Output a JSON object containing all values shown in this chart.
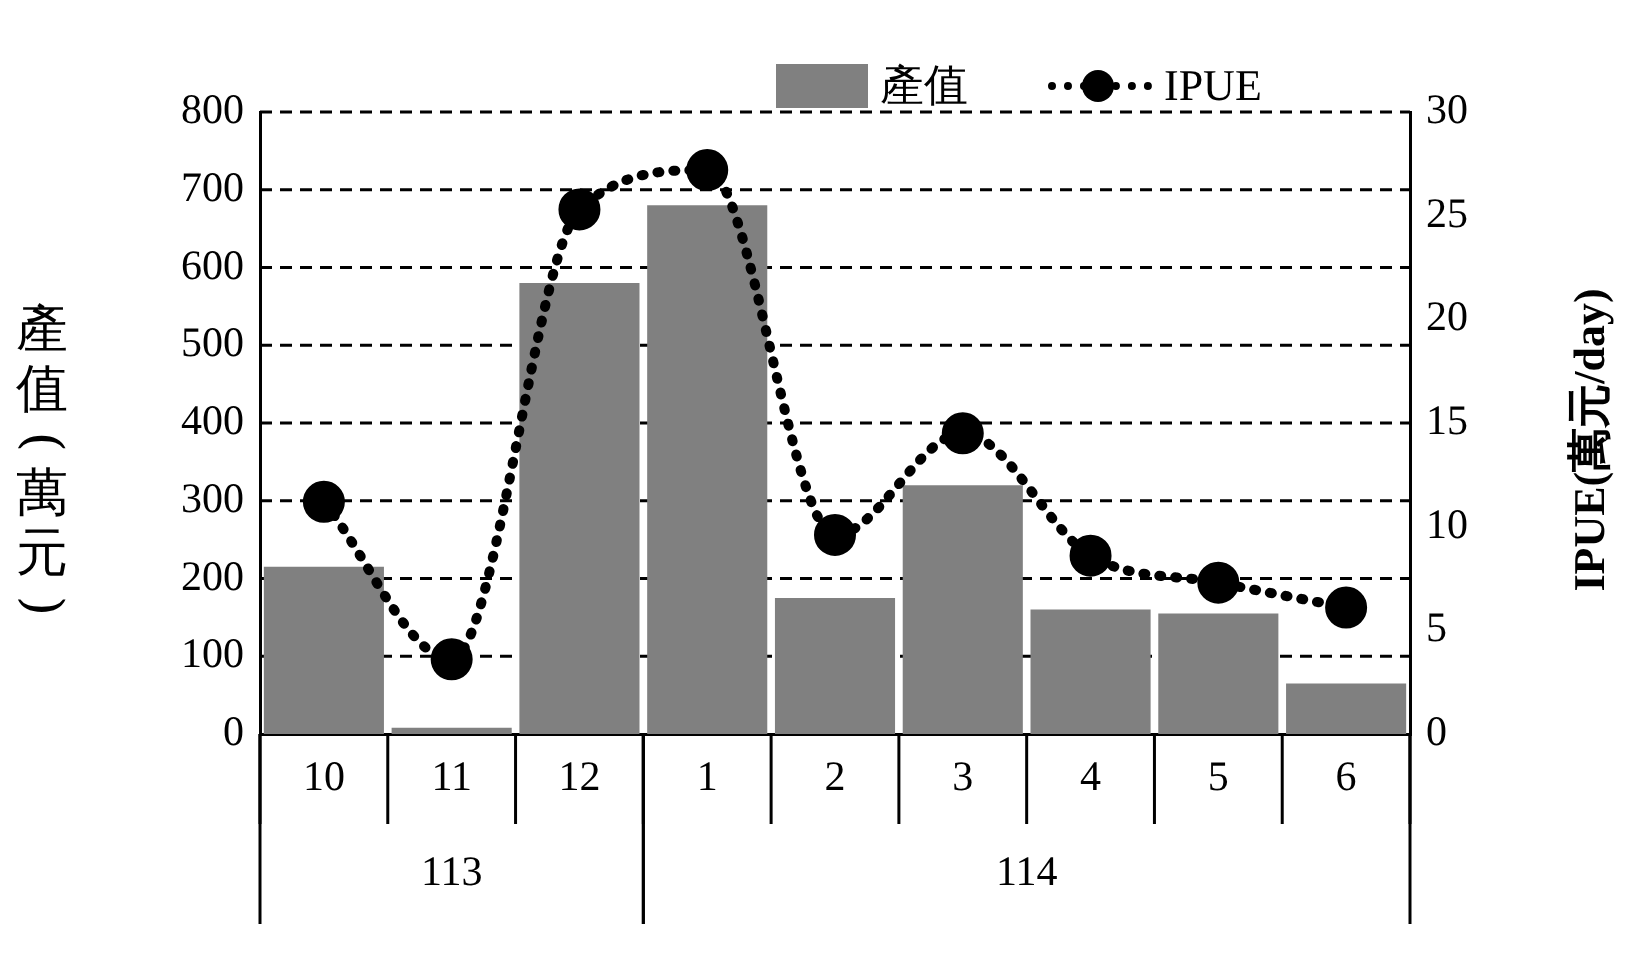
{
  "chart_data": {
    "type": "bar",
    "categories": [
      "10",
      "11",
      "12",
      "1",
      "2",
      "3",
      "4",
      "5",
      "6"
    ],
    "series": [
      {
        "name": "產值",
        "color": "#808080",
        "values": [
          215,
          8,
          580,
          680,
          175,
          320,
          160,
          155,
          65
        ]
      },
      {
        "name": "IPUE",
        "type": "line",
        "axis": "y2",
        "color": "#000000",
        "marker": "circle",
        "line_style": "dotted",
        "values": [
          11.2,
          3.6,
          25.3,
          27.2,
          9.6,
          14.5,
          8.6,
          7.3,
          6.1
        ]
      }
    ],
    "ylabel": "產值(萬元)",
    "y2label": "IPUE(萬元/day)",
    "ylim": [
      0,
      800
    ],
    "yticks": [
      0,
      100,
      200,
      300,
      400,
      500,
      600,
      700,
      800
    ],
    "y2lim": [
      0,
      30
    ],
    "y2ticks": [
      0,
      5,
      10,
      15,
      20,
      25,
      30
    ],
    "grid": "y",
    "legend": "top",
    "annotations": [
      "113",
      "114"
    ]
  }
}
